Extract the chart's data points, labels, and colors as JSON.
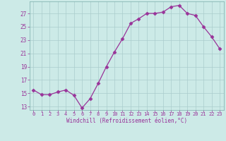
{
  "x": [
    0,
    1,
    2,
    3,
    4,
    5,
    6,
    7,
    8,
    9,
    10,
    11,
    12,
    13,
    14,
    15,
    16,
    17,
    18,
    19,
    20,
    21,
    22,
    23
  ],
  "y": [
    15.5,
    14.8,
    14.8,
    15.2,
    15.5,
    14.7,
    12.8,
    14.2,
    16.5,
    19.0,
    21.2,
    23.2,
    25.5,
    26.2,
    27.0,
    27.0,
    27.2,
    28.0,
    28.2,
    27.0,
    26.7,
    25.0,
    23.5,
    21.7
  ],
  "line_color": "#993399",
  "marker": "D",
  "marker_size": 2.5,
  "bg_color": "#cceae7",
  "grid_color": "#aacccc",
  "xlabel": "Windchill (Refroidissement éolien,°C)",
  "tick_color": "#993399",
  "yticks": [
    13,
    15,
    17,
    19,
    21,
    23,
    25,
    27
  ],
  "xticks": [
    0,
    1,
    2,
    3,
    4,
    5,
    6,
    7,
    8,
    9,
    10,
    11,
    12,
    13,
    14,
    15,
    16,
    17,
    18,
    19,
    20,
    21,
    22,
    23
  ],
  "ylim": [
    12.5,
    28.8
  ],
  "xlim": [
    -0.5,
    23.5
  ]
}
